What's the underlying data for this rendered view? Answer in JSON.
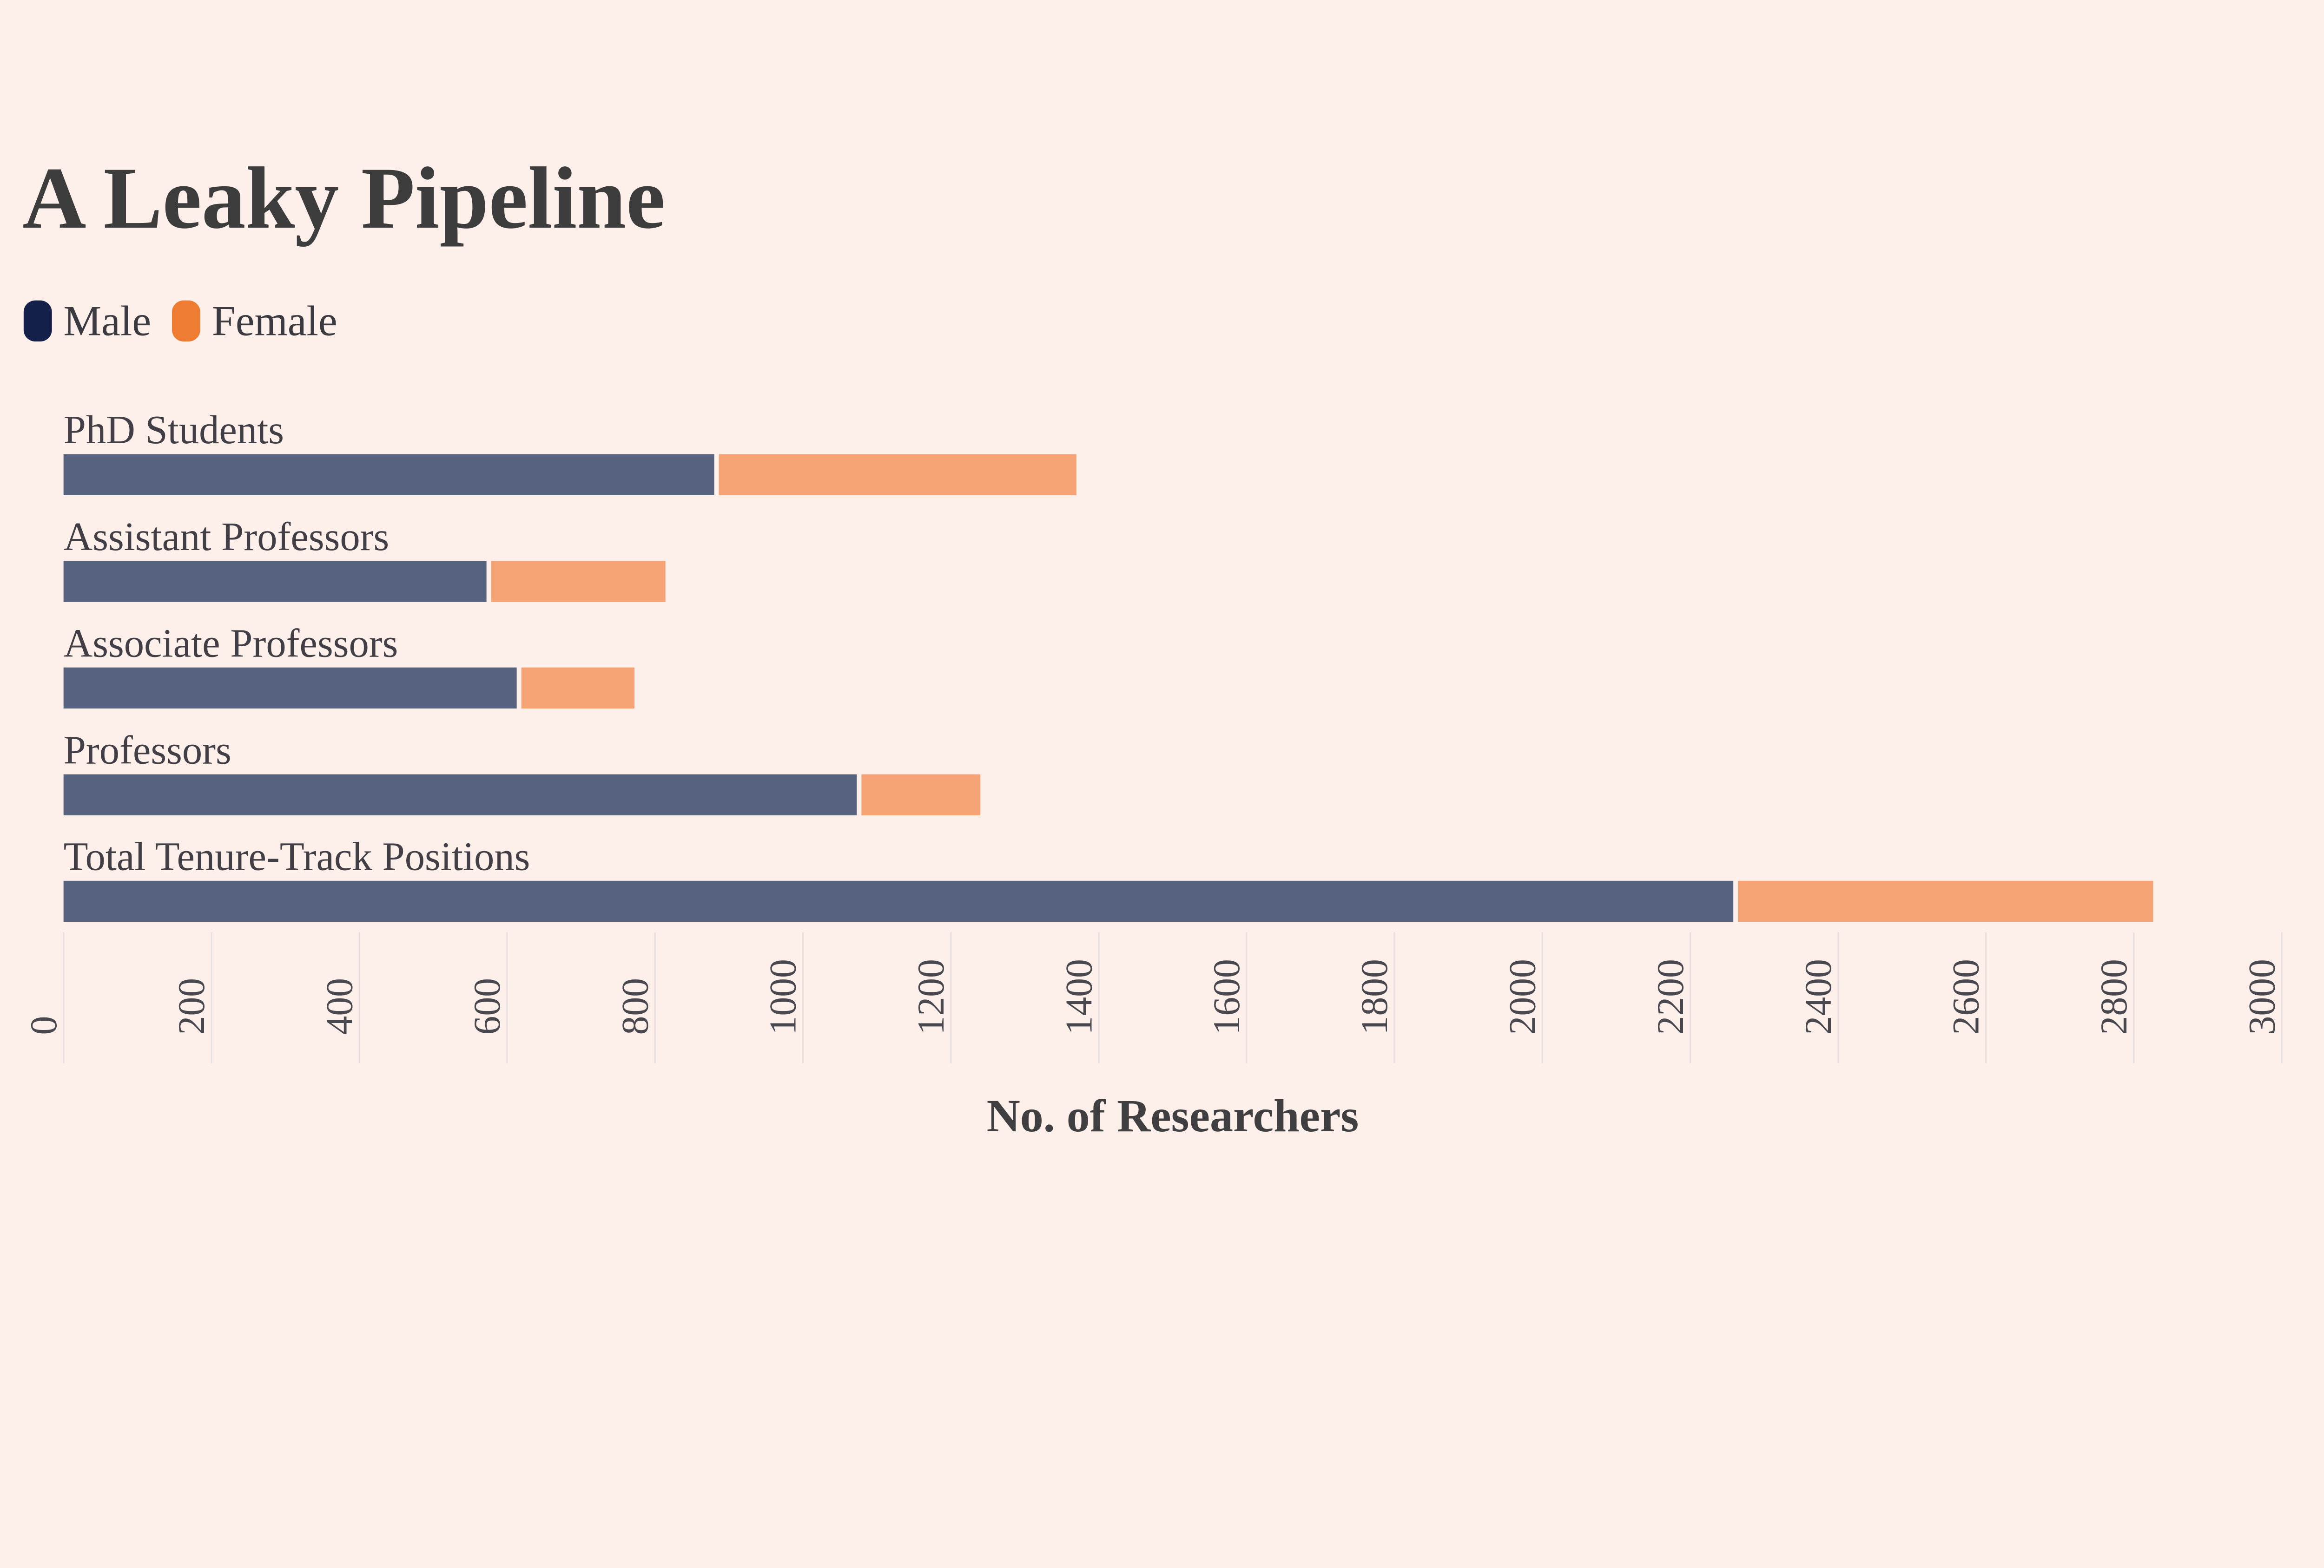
{
  "title": "A Leaky Pipeline",
  "legend": {
    "items": [
      {
        "label": "Male",
        "color": "#14204A"
      },
      {
        "label": "Female",
        "color": "#EE7C33"
      }
    ]
  },
  "colors": {
    "background": "#FDF0EA",
    "male_bar": "#57627E",
    "female_bar": "#F6A475",
    "male_legend": "#14204A",
    "female_legend": "#EE7C33",
    "gridline": "#E9DFDD",
    "title_text": "#3D3D3D",
    "category_text": "#413F45",
    "tick_text": "#49484F"
  },
  "chart_data": {
    "type": "bar",
    "orientation": "horizontal",
    "stacked": true,
    "title": "A Leaky Pipeline",
    "categories": [
      "PhD Students",
      "Assistant Professors",
      "Associate Professors",
      "Professors",
      "Total Tenure-Track Positions"
    ],
    "series": [
      {
        "name": "Male",
        "color": "#57627E",
        "values": [
          880,
          572,
          613,
          1073,
          2258
        ]
      },
      {
        "name": "Female",
        "color": "#F6A475",
        "values": [
          490,
          242,
          159,
          167,
          568
        ]
      }
    ],
    "xlabel": "No. of Researchers",
    "xlim": [
      0,
      3000
    ],
    "xticks": [
      0,
      200,
      400,
      600,
      800,
      1000,
      1200,
      1400,
      1600,
      1800,
      2000,
      2200,
      2400,
      2600,
      2800,
      3000
    ],
    "grid": true,
    "legend_position": "top-left",
    "tick_label_rotation": -90
  }
}
